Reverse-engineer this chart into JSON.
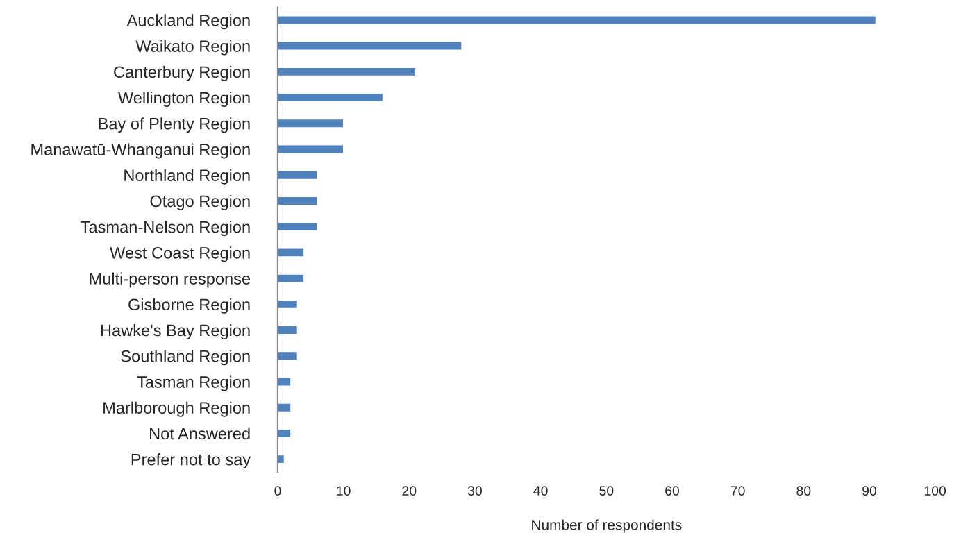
{
  "chart_data": {
    "type": "bar",
    "orientation": "horizontal",
    "xlabel": "Number of respondents",
    "categories": [
      "Auckland Region",
      "Waikato Region",
      "Canterbury Region",
      "Wellington Region",
      "Bay of Plenty Region",
      "Manawatū-Whanganui Region",
      "Northland Region",
      "Otago Region",
      "Tasman-Nelson Region",
      "West Coast Region",
      "Multi-person response",
      "Gisborne Region",
      "Hawke's Bay Region",
      "Southland Region",
      "Tasman Region",
      "Marlborough Region",
      "Not Answered",
      "Prefer not to say"
    ],
    "values": [
      91,
      28,
      21,
      16,
      10,
      10,
      6,
      6,
      6,
      4,
      4,
      3,
      3,
      3,
      2,
      2,
      2,
      1
    ],
    "color": "#4f81bd",
    "xlim": [
      0,
      100
    ],
    "xticks": [
      0,
      10,
      20,
      30,
      40,
      50,
      60,
      70,
      80,
      90,
      100
    ],
    "grid": false,
    "legend": false
  }
}
